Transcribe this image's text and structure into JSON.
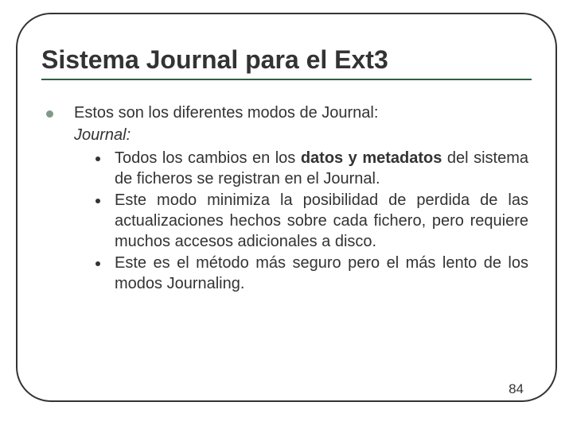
{
  "colors": {
    "frame_border": "#333333",
    "title_text": "#333333",
    "underline": "#2f5f3f",
    "bullet_l1": "#7f9a88",
    "bullet_l2": "#333333",
    "body_text": "#333333",
    "background": "#ffffff"
  },
  "title": "Sistema Journal para el Ext3",
  "intro": "Estos son los diferentes modos de Journal:",
  "mode_name": "Journal:",
  "sub1_pre": "Todos los cambios en los ",
  "sub1_bold": "datos y metadatos",
  "sub1_post": " del sistema de ficheros se registran en el Journal.",
  "sub2": "Este modo minimiza la posibilidad de perdida de las actualizaciones hechos sobre cada fichero, pero requiere muchos accesos adicionales a disco.",
  "sub3": "Este es el método más seguro pero el más lento de los modos Journaling.",
  "page_number": "84",
  "typography": {
    "title_fontsize": 32,
    "body_fontsize": 20,
    "pagenum_fontsize": 17
  },
  "layout": {
    "slide_w": 720,
    "slide_h": 540,
    "frame_radius": 44
  }
}
